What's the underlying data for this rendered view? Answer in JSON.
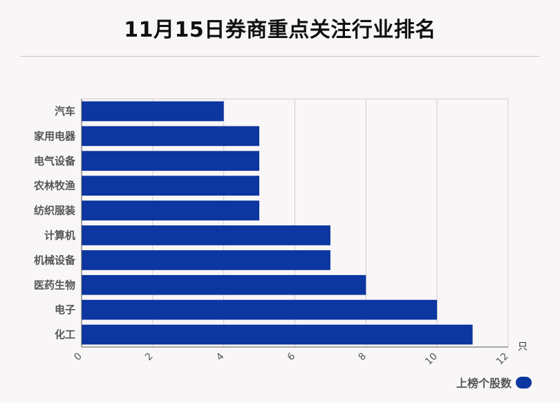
{
  "chart_data": {
    "type": "bar",
    "orientation": "horizontal",
    "title": "11月15日券商重点关注行业排名",
    "categories": [
      "汽车",
      "家用电器",
      "电气设备",
      "农林牧渔",
      "纺织服装",
      "计算机",
      "机械设备",
      "医药生物",
      "电子",
      "化工"
    ],
    "series": [
      {
        "name": "上榜个股数",
        "values": [
          4,
          5,
          5,
          5,
          5,
          7,
          7,
          8,
          10,
          11
        ]
      }
    ],
    "xlim": [
      0,
      12
    ],
    "x_ticks": [
      "0",
      "2",
      "4",
      "6",
      "8",
      "10",
      "12"
    ],
    "x_unit": "只",
    "grid": true,
    "legend_position": "bottom-right",
    "bar_color": "#0c36a0"
  }
}
